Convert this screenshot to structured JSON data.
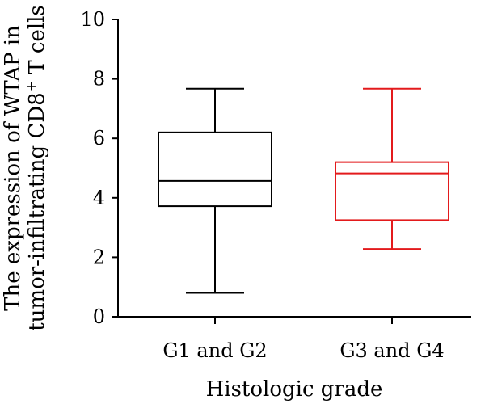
{
  "chart_data": {
    "type": "box",
    "xlabel": "Histologic grade",
    "ylabel_line1": "The expression of WTAP in",
    "ylabel_line2_prefix": "tumor-infiltrating  CD8",
    "ylabel_line2_sup": "+",
    "ylabel_line2_suffix": " T cells",
    "ylim": [
      0,
      10
    ],
    "yticks": [
      0,
      2,
      4,
      6,
      8,
      10
    ],
    "categories": [
      "G1 and G2",
      "G3 and G4"
    ],
    "boxes": [
      {
        "category": "G1 and G2",
        "min": 0.8,
        "q1": 3.72,
        "median": 4.57,
        "q3": 6.2,
        "max": 7.67,
        "color": "#000000"
      },
      {
        "category": "G3 and G4",
        "min": 2.28,
        "q1": 3.25,
        "median": 4.82,
        "q3": 5.2,
        "max": 7.67,
        "color": "#e31a1c"
      }
    ]
  }
}
